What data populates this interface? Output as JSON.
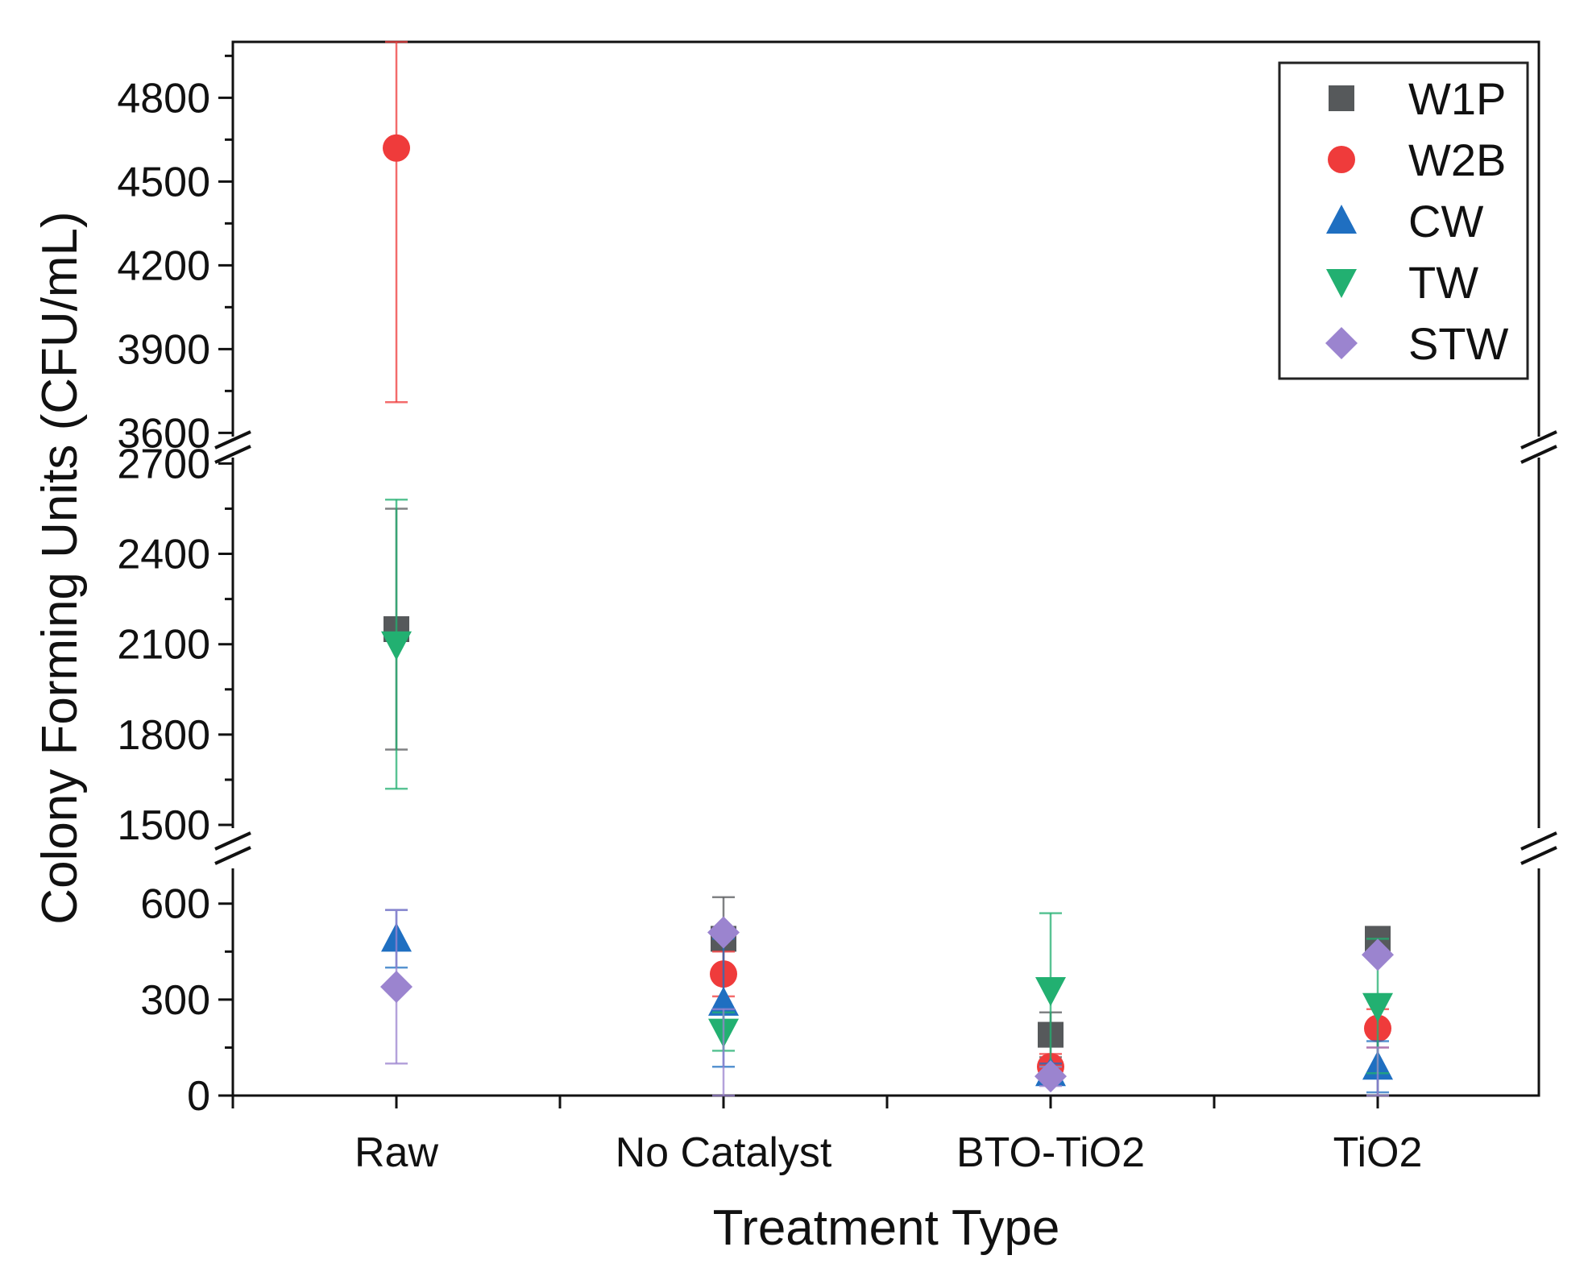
{
  "chart_data": {
    "type": "scatter",
    "title": "",
    "xlabel": "Treatment Type",
    "ylabel": "Colony Forming Units (CFU/mL)",
    "categories": [
      "Raw",
      "No Catalyst",
      "BTO-TiO2",
      "TiO2"
    ],
    "axis_breaks": [
      [
        700,
        1500
      ],
      [
        2800,
        3500
      ]
    ],
    "y_segments": [
      {
        "range": [
          0,
          700
        ],
        "ticks": [
          0,
          300,
          600
        ]
      },
      {
        "range": [
          1500,
          2800
        ],
        "ticks": [
          1500,
          1800,
          2100,
          2400,
          2700
        ]
      },
      {
        "range": [
          3500,
          5000
        ],
        "ticks": [
          3600,
          3900,
          4200,
          4500,
          4800
        ]
      }
    ],
    "legend_position": "top-right",
    "series": [
      {
        "name": "W1P",
        "marker": "square",
        "color": "#56595b",
        "values": [
          2150,
          490,
          190,
          490
        ],
        "errors": [
          400,
          130,
          70,
          270
        ]
      },
      {
        "name": "W2B",
        "marker": "circle",
        "color": "#ef3b3b",
        "values": [
          4620,
          380,
          90,
          210
        ],
        "errors": [
          910,
          70,
          40,
          60
        ]
      },
      {
        "name": "CW",
        "marker": "triangle-up",
        "color": "#1f6fc1",
        "values": [
          490,
          290,
          70,
          90
        ],
        "errors": [
          90,
          200,
          30,
          80
        ]
      },
      {
        "name": "TW",
        "marker": "triangle-down",
        "color": "#22b071",
        "values": [
          2100,
          200,
          330,
          280
        ],
        "errors": [
          480,
          60,
          240,
          210
        ]
      },
      {
        "name": "STW",
        "marker": "diamond",
        "color": "#9b84cf",
        "values": [
          340,
          510,
          60,
          440
        ],
        "errors": [
          240,
          240,
          30,
          290
        ]
      }
    ]
  },
  "colors": {
    "axis": "#111111",
    "legend_border": "#222222",
    "break_marks": "#111111"
  }
}
